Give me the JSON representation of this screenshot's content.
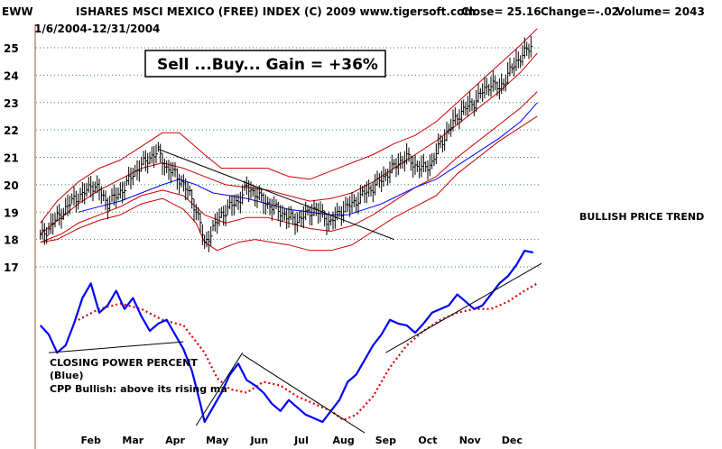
{
  "header": {
    "symbol": "EWW",
    "name": "ISHARES MSCI MEXICO (FREE) INDEX",
    "copyright": "(C) 2009 www.tigersoft.com",
    "close": "Close=  25.16",
    "change": "Change=-.02",
    "volume": "Volume= 2043",
    "date_range": "1/6/2004-12/31/2004"
  },
  "annotations": {
    "signal_box": "Sell ...Buy...  Gain = +36%",
    "trend_label": "BULLISH PRICE TREND",
    "cpp_title": "CLOSING POWER PERCENT",
    "cpp_color": "(Blue)",
    "cpp_note": "CPP Bullish: above its rising ma"
  },
  "colors": {
    "price_bars": "#000000",
    "bands": "#cc0000",
    "ma": "#0000ff",
    "cpp": "#0000ff",
    "cpp_ma": "#dd0000",
    "grid": "#2e8b57"
  },
  "chart_data": {
    "type": "line",
    "title": "ISHARES MSCI MEXICO (FREE) INDEX",
    "ylim": [
      16.5,
      25.8
    ],
    "y_ticks": [
      17,
      18,
      19,
      20,
      21,
      22,
      23,
      24,
      25
    ],
    "x_ticks": [
      "Feb",
      "Mar",
      "Apr",
      "May",
      "Jun",
      "Jul",
      "Aug",
      "Sep",
      "Oct",
      "Nov",
      "Dec"
    ],
    "x_tick_months": [
      1,
      2,
      3,
      4,
      5,
      6,
      7,
      8,
      9,
      10,
      11
    ],
    "xlim_months": [
      0,
      12
    ],
    "grid": "horizontal dotted",
    "price_close_weekly": [
      [
        0.1,
        18.1
      ],
      [
        0.3,
        18.4
      ],
      [
        0.5,
        18.8
      ],
      [
        0.7,
        19.1
      ],
      [
        0.9,
        19.5
      ],
      [
        1.1,
        19.6
      ],
      [
        1.3,
        20.0
      ],
      [
        1.5,
        19.8
      ],
      [
        1.7,
        19.3
      ],
      [
        1.9,
        19.6
      ],
      [
        2.1,
        19.9
      ],
      [
        2.3,
        20.4
      ],
      [
        2.5,
        20.7
      ],
      [
        2.7,
        21.0
      ],
      [
        2.9,
        21.2
      ],
      [
        3.1,
        20.6
      ],
      [
        3.3,
        20.4
      ],
      [
        3.5,
        20.0
      ],
      [
        3.7,
        19.5
      ],
      [
        3.9,
        18.6
      ],
      [
        4.0,
        17.8
      ],
      [
        4.2,
        18.4
      ],
      [
        4.4,
        18.9
      ],
      [
        4.6,
        19.2
      ],
      [
        4.8,
        19.4
      ],
      [
        5.0,
        19.9
      ],
      [
        5.2,
        19.7
      ],
      [
        5.4,
        19.4
      ],
      [
        5.6,
        19.2
      ],
      [
        5.8,
        19.0
      ],
      [
        6.0,
        18.8
      ],
      [
        6.2,
        18.7
      ],
      [
        6.4,
        18.9
      ],
      [
        6.6,
        19.1
      ],
      [
        6.8,
        18.9
      ],
      [
        7.0,
        18.6
      ],
      [
        7.2,
        19.0
      ],
      [
        7.4,
        19.2
      ],
      [
        7.6,
        19.4
      ],
      [
        7.8,
        19.7
      ],
      [
        8.0,
        19.9
      ],
      [
        8.2,
        20.2
      ],
      [
        8.4,
        20.5
      ],
      [
        8.6,
        20.8
      ],
      [
        8.8,
        21.0
      ],
      [
        9.0,
        20.7
      ],
      [
        9.2,
        20.6
      ],
      [
        9.4,
        20.8
      ],
      [
        9.6,
        21.5
      ],
      [
        9.8,
        22.0
      ],
      [
        10.0,
        22.5
      ],
      [
        10.2,
        22.8
      ],
      [
        10.4,
        23.0
      ],
      [
        10.6,
        23.4
      ],
      [
        10.8,
        23.7
      ],
      [
        11.0,
        23.5
      ],
      [
        11.2,
        24.0
      ],
      [
        11.4,
        24.5
      ],
      [
        11.6,
        24.8
      ],
      [
        11.8,
        25.16
      ]
    ],
    "upper_band": [
      [
        0.1,
        18.6
      ],
      [
        0.5,
        19.4
      ],
      [
        1.0,
        20.1
      ],
      [
        1.5,
        20.6
      ],
      [
        2.0,
        20.9
      ],
      [
        2.5,
        21.4
      ],
      [
        3.0,
        21.9
      ],
      [
        3.4,
        21.9
      ],
      [
        3.7,
        21.5
      ],
      [
        4.0,
        21.1
      ],
      [
        4.4,
        20.6
      ],
      [
        5.0,
        20.6
      ],
      [
        5.5,
        20.6
      ],
      [
        6.0,
        20.3
      ],
      [
        6.5,
        20.2
      ],
      [
        7.0,
        20.5
      ],
      [
        7.5,
        20.8
      ],
      [
        8.0,
        21.1
      ],
      [
        8.5,
        21.5
      ],
      [
        9.0,
        21.8
      ],
      [
        9.5,
        22.3
      ],
      [
        10.0,
        23.0
      ],
      [
        10.5,
        23.7
      ],
      [
        11.0,
        24.4
      ],
      [
        11.5,
        25.1
      ],
      [
        11.9,
        25.7
      ]
    ],
    "lower_band": [
      [
        0.1,
        17.9
      ],
      [
        0.5,
        18.0
      ],
      [
        1.0,
        18.4
      ],
      [
        1.5,
        18.7
      ],
      [
        2.0,
        18.9
      ],
      [
        2.5,
        19.3
      ],
      [
        3.0,
        19.5
      ],
      [
        3.5,
        19.1
      ],
      [
        3.8,
        18.6
      ],
      [
        4.0,
        17.9
      ],
      [
        4.3,
        17.6
      ],
      [
        4.8,
        17.9
      ],
      [
        5.2,
        18.0
      ],
      [
        5.6,
        17.9
      ],
      [
        6.0,
        17.8
      ],
      [
        6.5,
        17.6
      ],
      [
        7.0,
        17.6
      ],
      [
        7.5,
        17.8
      ],
      [
        8.0,
        18.3
      ],
      [
        8.5,
        18.8
      ],
      [
        9.0,
        19.2
      ],
      [
        9.5,
        19.6
      ],
      [
        10.0,
        20.4
      ],
      [
        10.5,
        21.0
      ],
      [
        11.0,
        21.6
      ],
      [
        11.5,
        22.1
      ],
      [
        11.9,
        22.5
      ]
    ],
    "inner_upper_band": [
      [
        0.1,
        18.2
      ],
      [
        0.6,
        18.8
      ],
      [
        1.0,
        19.3
      ],
      [
        1.5,
        19.8
      ],
      [
        2.0,
        20.2
      ],
      [
        2.5,
        20.6
      ],
      [
        3.0,
        20.8
      ],
      [
        3.5,
        20.6
      ],
      [
        4.0,
        20.3
      ],
      [
        4.5,
        20.0
      ],
      [
        5.0,
        19.9
      ],
      [
        5.5,
        19.8
      ],
      [
        6.0,
        19.6
      ],
      [
        6.5,
        19.4
      ],
      [
        7.0,
        19.5
      ],
      [
        7.5,
        19.7
      ],
      [
        8.0,
        20.1
      ],
      [
        8.5,
        20.6
      ],
      [
        9.0,
        21.1
      ],
      [
        9.5,
        21.6
      ],
      [
        10.0,
        22.2
      ],
      [
        10.5,
        22.8
      ],
      [
        11.0,
        23.4
      ],
      [
        11.5,
        24.1
      ],
      [
        11.9,
        24.8
      ]
    ],
    "inner_lower_band": [
      [
        0.1,
        17.9
      ],
      [
        0.6,
        18.2
      ],
      [
        1.0,
        18.6
      ],
      [
        1.5,
        18.9
      ],
      [
        2.0,
        19.2
      ],
      [
        2.5,
        19.6
      ],
      [
        3.0,
        19.8
      ],
      [
        3.5,
        19.6
      ],
      [
        4.0,
        18.9
      ],
      [
        4.5,
        18.6
      ],
      [
        5.0,
        18.8
      ],
      [
        5.5,
        18.8
      ],
      [
        6.0,
        18.6
      ],
      [
        6.5,
        18.4
      ],
      [
        7.0,
        18.3
      ],
      [
        7.5,
        18.5
      ],
      [
        8.0,
        18.9
      ],
      [
        8.5,
        19.4
      ],
      [
        9.0,
        19.9
      ],
      [
        9.5,
        20.3
      ],
      [
        10.0,
        21.0
      ],
      [
        10.5,
        21.6
      ],
      [
        11.0,
        22.2
      ],
      [
        11.5,
        22.8
      ],
      [
        11.9,
        23.4
      ]
    ],
    "moving_average": [
      [
        1.0,
        19.0
      ],
      [
        1.5,
        19.2
      ],
      [
        2.0,
        19.4
      ],
      [
        2.5,
        19.7
      ],
      [
        3.0,
        20.0
      ],
      [
        3.4,
        20.2
      ],
      [
        3.8,
        20.0
      ],
      [
        4.2,
        19.7
      ],
      [
        4.6,
        19.6
      ],
      [
        5.0,
        19.5
      ],
      [
        5.5,
        19.3
      ],
      [
        6.0,
        19.1
      ],
      [
        6.5,
        19.0
      ],
      [
        7.0,
        18.9
      ],
      [
        7.4,
        18.9
      ],
      [
        7.8,
        19.1
      ],
      [
        8.2,
        19.3
      ],
      [
        8.6,
        19.6
      ],
      [
        9.0,
        19.9
      ],
      [
        9.5,
        20.2
      ],
      [
        10.0,
        20.7
      ],
      [
        10.5,
        21.2
      ],
      [
        11.0,
        21.7
      ],
      [
        11.5,
        22.3
      ],
      [
        11.9,
        23.0
      ]
    ],
    "price_trendline": [
      [
        2.9,
        21.3
      ],
      [
        8.5,
        18.0
      ]
    ],
    "cpp_scale": [
      0,
      100
    ],
    "cpp": [
      [
        0.1,
        55
      ],
      [
        0.3,
        50
      ],
      [
        0.5,
        40
      ],
      [
        0.7,
        44
      ],
      [
        0.9,
        56
      ],
      [
        1.1,
        70
      ],
      [
        1.3,
        78
      ],
      [
        1.5,
        62
      ],
      [
        1.7,
        66
      ],
      [
        1.9,
        74
      ],
      [
        2.1,
        64
      ],
      [
        2.3,
        70
      ],
      [
        2.5,
        60
      ],
      [
        2.7,
        52
      ],
      [
        2.9,
        56
      ],
      [
        3.1,
        58
      ],
      [
        3.3,
        50
      ],
      [
        3.5,
        42
      ],
      [
        3.7,
        30
      ],
      [
        3.9,
        12
      ],
      [
        4.0,
        2
      ],
      [
        4.2,
        10
      ],
      [
        4.4,
        18
      ],
      [
        4.6,
        28
      ],
      [
        4.8,
        34
      ],
      [
        5.0,
        25
      ],
      [
        5.2,
        22
      ],
      [
        5.4,
        18
      ],
      [
        5.6,
        12
      ],
      [
        5.8,
        8
      ],
      [
        6.0,
        14
      ],
      [
        6.2,
        10
      ],
      [
        6.4,
        6
      ],
      [
        6.6,
        4
      ],
      [
        6.8,
        2
      ],
      [
        7.0,
        8
      ],
      [
        7.2,
        14
      ],
      [
        7.4,
        24
      ],
      [
        7.6,
        28
      ],
      [
        7.8,
        36
      ],
      [
        8.0,
        44
      ],
      [
        8.2,
        50
      ],
      [
        8.4,
        58
      ],
      [
        8.6,
        56
      ],
      [
        8.8,
        55
      ],
      [
        9.0,
        51
      ],
      [
        9.2,
        56
      ],
      [
        9.4,
        62
      ],
      [
        9.6,
        64
      ],
      [
        9.8,
        66
      ],
      [
        10.0,
        72
      ],
      [
        10.2,
        68
      ],
      [
        10.4,
        64
      ],
      [
        10.6,
        66
      ],
      [
        10.8,
        72
      ],
      [
        11.0,
        78
      ],
      [
        11.2,
        82
      ],
      [
        11.4,
        88
      ],
      [
        11.6,
        96
      ],
      [
        11.8,
        95
      ]
    ],
    "cpp_ma": [
      [
        1.0,
        58
      ],
      [
        1.5,
        64
      ],
      [
        2.0,
        67
      ],
      [
        2.5,
        64
      ],
      [
        3.0,
        58
      ],
      [
        3.5,
        55
      ],
      [
        4.0,
        40
      ],
      [
        4.3,
        26
      ],
      [
        4.6,
        20
      ],
      [
        5.0,
        18
      ],
      [
        5.4,
        24
      ],
      [
        5.8,
        22
      ],
      [
        6.2,
        16
      ],
      [
        6.6,
        12
      ],
      [
        7.0,
        8
      ],
      [
        7.3,
        3
      ],
      [
        7.6,
        6
      ],
      [
        8.0,
        16
      ],
      [
        8.4,
        32
      ],
      [
        8.8,
        44
      ],
      [
        9.2,
        52
      ],
      [
        9.6,
        58
      ],
      [
        10.0,
        62
      ],
      [
        10.4,
        64
      ],
      [
        10.8,
        64
      ],
      [
        11.2,
        68
      ],
      [
        11.6,
        74
      ],
      [
        11.9,
        78
      ]
    ],
    "cpp_trendlines": [
      [
        [
          0.3,
          40
        ],
        [
          3.5,
          46
        ]
      ],
      [
        [
          3.8,
          0
        ],
        [
          4.9,
          40
        ]
      ],
      [
        [
          4.9,
          39
        ],
        [
          7.8,
          -4
        ]
      ],
      [
        [
          8.3,
          40
        ],
        [
          12.0,
          89
        ]
      ]
    ]
  }
}
